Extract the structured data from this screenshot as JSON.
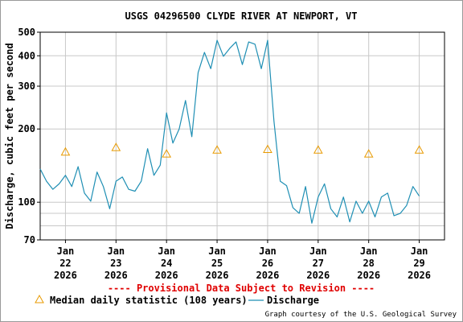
{
  "chart_data": {
    "type": "line",
    "title": "USGS 04296500 CLYDE RIVER AT NEWPORT, VT",
    "y_label": "Discharge, cubic feet per second",
    "log_y": true,
    "grid": true,
    "ylim": [
      70,
      500
    ],
    "yticks": [
      70,
      100,
      200,
      300,
      400,
      500
    ],
    "y_minor_grid": [
      80,
      90
    ],
    "xlim": [
      21.5,
      29.5
    ],
    "xticks": [
      {
        "value": 22,
        "label": [
          "Jan",
          "22",
          "2026"
        ]
      },
      {
        "value": 23,
        "label": [
          "Jan",
          "23",
          "2026"
        ]
      },
      {
        "value": 24,
        "label": [
          "Jan",
          "24",
          "2026"
        ]
      },
      {
        "value": 25,
        "label": [
          "Jan",
          "25",
          "2026"
        ]
      },
      {
        "value": 26,
        "label": [
          "Jan",
          "26",
          "2026"
        ]
      },
      {
        "value": 27,
        "label": [
          "Jan",
          "27",
          "2026"
        ]
      },
      {
        "value": 28,
        "label": [
          "Jan",
          "28",
          "2026"
        ]
      },
      {
        "value": 29,
        "label": [
          "Jan",
          "29",
          "2026"
        ]
      }
    ],
    "series": [
      {
        "name": "Discharge",
        "color": "#1f8fb4",
        "kind": "line",
        "x": [
          21.5,
          21.625,
          21.75,
          21.875,
          22,
          22.125,
          22.25,
          22.375,
          22.5,
          22.625,
          22.75,
          22.875,
          23,
          23.125,
          23.25,
          23.375,
          23.5,
          23.625,
          23.75,
          23.875,
          24,
          24.125,
          24.25,
          24.375,
          24.5,
          24.625,
          24.75,
          24.875,
          25,
          25.125,
          25.25,
          25.375,
          25.5,
          25.625,
          25.75,
          25.875,
          26,
          26.125,
          26.25,
          26.375,
          26.5,
          26.625,
          26.75,
          26.875,
          27,
          27.125,
          27.25,
          27.375,
          27.5,
          27.625,
          27.75,
          27.875,
          28,
          28.125,
          28.25,
          28.375,
          28.5,
          28.625,
          28.75,
          28.875,
          29
        ],
        "values": [
          137,
          122,
          113,
          119,
          129,
          116,
          140,
          109,
          101,
          133,
          116,
          94,
          122,
          127,
          113,
          111,
          122,
          166,
          129,
          142,
          233,
          175,
          200,
          262,
          186,
          341,
          413,
          354,
          463,
          398,
          429,
          456,
          368,
          456,
          446,
          354,
          463,
          216,
          122,
          117,
          95,
          90,
          116,
          82,
          105,
          119,
          94,
          87,
          105,
          83,
          101,
          90,
          101,
          87,
          105,
          109,
          88,
          90,
          97,
          116,
          106
        ]
      },
      {
        "name": "Median daily statistic (108 years)",
        "color": "#e89a00",
        "kind": "triangle",
        "x": [
          22,
          23,
          24,
          25,
          26,
          27,
          28,
          29
        ],
        "values": [
          161,
          168,
          158,
          164,
          165,
          164,
          158,
          164
        ]
      }
    ],
    "notice": "---- Provisional Data Subject to Revision ----",
    "credit": "Graph courtesy of the U.S. Geological Survey"
  }
}
